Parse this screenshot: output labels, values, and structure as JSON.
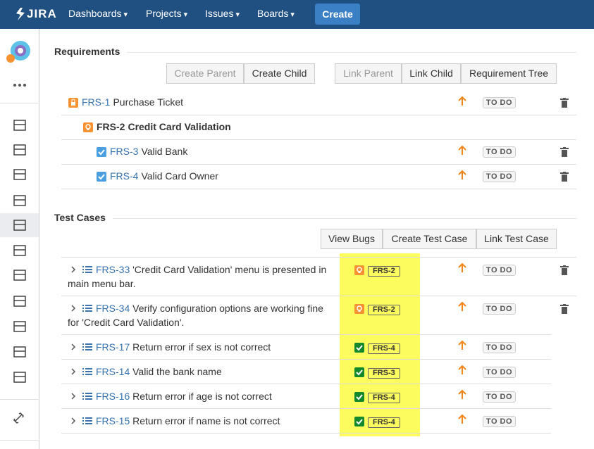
{
  "nav": {
    "logo": "JIRA",
    "menus": [
      "Dashboards",
      "Projects",
      "Issues",
      "Boards"
    ],
    "create": "Create"
  },
  "requirements": {
    "title": "Requirements",
    "create_buttons": [
      "Create Parent",
      "Create Child"
    ],
    "link_buttons": [
      "Link Parent",
      "Link Child",
      "Requirement Tree"
    ],
    "rows": [
      {
        "key": "FRS-1",
        "summary": "Purchase Ticket",
        "status": "TO DO"
      },
      {
        "key": "FRS-2",
        "summary": "Credit Card Validation"
      },
      {
        "key": "FRS-3",
        "summary": "Valid Bank",
        "status": "TO DO"
      },
      {
        "key": "FRS-4",
        "summary": "Valid Card Owner",
        "status": "TO DO"
      }
    ]
  },
  "test_cases": {
    "title": "Test Cases",
    "buttons": [
      "View Bugs",
      "Create Test Case",
      "Link Test Case"
    ],
    "rows": [
      {
        "key": "FRS-33",
        "summary": "'Credit Card Validation' menu is presented in main menu bar.",
        "requirement": "FRS-2",
        "status": "TO DO"
      },
      {
        "key": "FRS-34",
        "summary": "Verify configuration options are working fine for 'Credit Card Validation'.",
        "requirement": "FRS-2",
        "status": "TO DO"
      },
      {
        "key": "FRS-17",
        "summary": "Return error if sex is not correct",
        "requirement": "FRS-4",
        "status": "TO DO"
      },
      {
        "key": "FRS-14",
        "summary": "Valid the bank name",
        "requirement": "FRS-3",
        "status": "TO DO"
      },
      {
        "key": "FRS-16",
        "summary": "Return error if age is not correct",
        "requirement": "FRS-4",
        "status": "TO DO"
      },
      {
        "key": "FRS-15",
        "summary": "Return error if name is not correct",
        "requirement": "FRS-4",
        "status": "TO DO"
      }
    ]
  }
}
